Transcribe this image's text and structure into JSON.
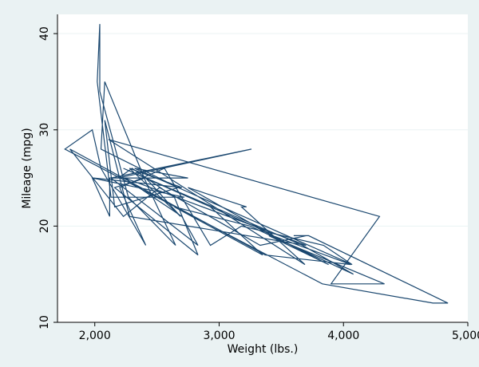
{
  "colors": {
    "outer_background": "#eaf2f3",
    "plot_background": "#ffffff",
    "grid": "#eaf2f3",
    "axis": "#000000",
    "series": "#1a476f"
  },
  "chart_data": {
    "type": "line",
    "title": "",
    "xlabel": "Weight (lbs.)",
    "ylabel": "Mileage (mpg)",
    "xlim": [
      1700,
      5000
    ],
    "ylim": [
      10,
      42
    ],
    "grid": true,
    "legend": "none",
    "x_ticks": [
      2000,
      3000,
      4000,
      5000
    ],
    "x_tick_labels": [
      "2,000",
      "3,000",
      "4,000",
      "5,000"
    ],
    "y_ticks": [
      10,
      20,
      30,
      40
    ],
    "y_tick_labels": [
      "10",
      "20",
      "30",
      "40"
    ],
    "series": [
      {
        "x": [
          2930,
          3350,
          2640,
          3250,
          4080,
          3670,
          2230,
          3280,
          3880,
          3400,
          4330,
          3900,
          4290,
          2110,
          3690,
          3180,
          3220,
          2750,
          3430,
          4060,
          3370,
          1800,
          2230,
          2520,
          3330,
          3700,
          3600,
          3720,
          4840,
          4720,
          3830,
          1760,
          1980,
          2050,
          2410,
          2200,
          2560,
          2930,
          3180,
          3840,
          4070,
          2320,
          2750,
          2120,
          2120,
          1980,
          2720,
          2130,
          2020,
          2040,
          2040,
          2270,
          2650,
          2430,
          2080,
          2050,
          2670,
          2160,
          2080,
          2280,
          3700,
          2240,
          2700,
          2830,
          2130,
          3260,
          2190,
          2300,
          2640,
          2830,
          2160,
          2410,
          2690,
          2280,
          2700,
          1990
        ],
        "y": [
          22,
          17,
          22,
          20,
          15,
          18,
          26,
          20,
          16,
          19,
          14,
          14,
          21,
          29,
          16,
          22,
          22,
          24,
          19,
          16,
          17,
          28,
          21,
          24,
          18,
          19,
          19,
          19,
          12,
          12,
          14,
          28,
          30,
          26,
          18,
          24,
          26,
          18,
          20,
          18,
          16,
          26,
          25,
          25,
          21,
          25,
          23,
          23,
          35,
          41,
          34,
          23,
          18,
          24,
          35,
          28,
          24,
          22,
          31,
          21,
          18,
          25,
          21,
          18,
          25,
          28,
          25,
          26,
          23,
          17,
          24,
          25,
          21,
          26,
          24,
          25
        ]
      }
    ]
  }
}
